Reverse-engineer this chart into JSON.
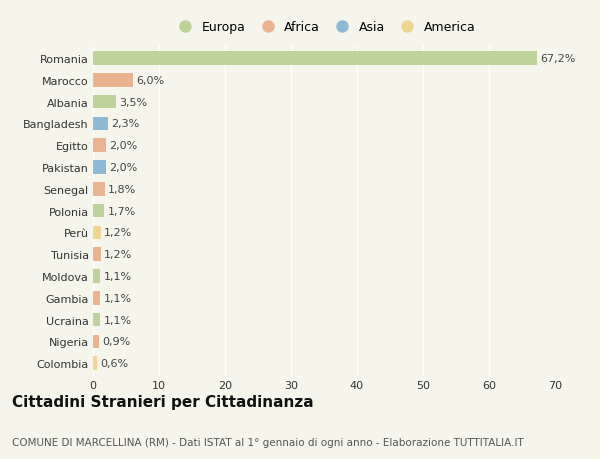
{
  "countries": [
    "Romania",
    "Marocco",
    "Albania",
    "Bangladesh",
    "Egitto",
    "Pakistan",
    "Senegal",
    "Polonia",
    "Perù",
    "Tunisia",
    "Moldova",
    "Gambia",
    "Ucraina",
    "Nigeria",
    "Colombia"
  ],
  "values": [
    67.2,
    6.0,
    3.5,
    2.3,
    2.0,
    2.0,
    1.8,
    1.7,
    1.2,
    1.2,
    1.1,
    1.1,
    1.1,
    0.9,
    0.6
  ],
  "labels": [
    "67,2%",
    "6,0%",
    "3,5%",
    "2,3%",
    "2,0%",
    "2,0%",
    "1,8%",
    "1,7%",
    "1,2%",
    "1,2%",
    "1,1%",
    "1,1%",
    "1,1%",
    "0,9%",
    "0,6%"
  ],
  "continents": [
    "Europa",
    "Africa",
    "Europa",
    "Asia",
    "Africa",
    "Asia",
    "Africa",
    "Europa",
    "America",
    "Africa",
    "Europa",
    "Africa",
    "Europa",
    "Africa",
    "America"
  ],
  "continent_colors": {
    "Europa": "#b5cc8e",
    "Africa": "#e8a97e",
    "Asia": "#7bafd4",
    "America": "#f0d080"
  },
  "legend_order": [
    "Europa",
    "Africa",
    "Asia",
    "America"
  ],
  "title": "Cittadini Stranieri per Cittadinanza",
  "subtitle": "COMUNE DI MARCELLINA (RM) - Dati ISTAT al 1° gennaio di ogni anno - Elaborazione TUTTITALIA.IT",
  "xlim": [
    0,
    70
  ],
  "xticks": [
    0,
    10,
    20,
    30,
    40,
    50,
    60,
    70
  ],
  "background_color": "#f5f5eb",
  "grid_color": "#ffffff",
  "title_fontsize": 11,
  "subtitle_fontsize": 7.5,
  "label_fontsize": 8,
  "tick_fontsize": 8,
  "legend_fontsize": 9
}
